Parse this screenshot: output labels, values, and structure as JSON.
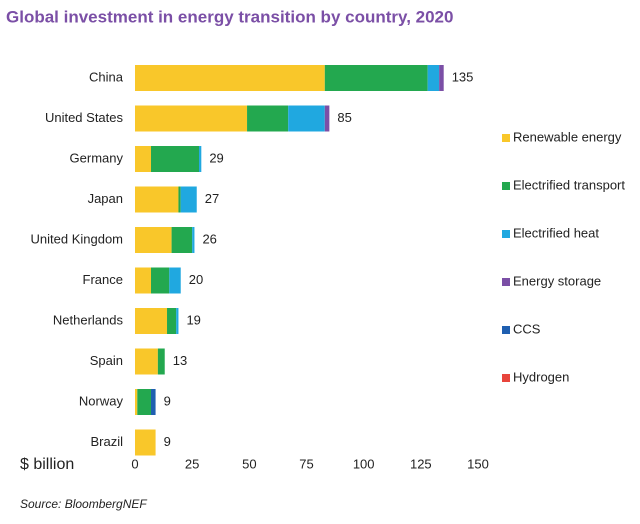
{
  "chart_data": {
    "type": "stacked-bar-horizontal",
    "title": "Global investment in energy transition by country, 2020",
    "x_label": "$ billion",
    "source": "Source: BloombergNEF",
    "categories": [
      "China",
      "United States",
      "Germany",
      "Japan",
      "United Kingdom",
      "France",
      "Netherlands",
      "Spain",
      "Norway",
      "Brazil"
    ],
    "series": [
      {
        "name": "Renewable energy",
        "color": "#f9c72a",
        "values": [
          83,
          49,
          7,
          19,
          16,
          7,
          14,
          10,
          1,
          9
        ]
      },
      {
        "name": "Electrified transport",
        "color": "#23a84f",
        "values": [
          45,
          18,
          21,
          1,
          9,
          8,
          4,
          3,
          6,
          0
        ]
      },
      {
        "name": "Electrified heat",
        "color": "#20a8e0",
        "values": [
          5,
          16,
          1,
          7,
          1,
          5,
          1,
          0,
          0,
          0
        ]
      },
      {
        "name": "Energy storage",
        "color": "#7b4fa6",
        "values": [
          2,
          2,
          0,
          0,
          0,
          0,
          0,
          0,
          0,
          0
        ]
      },
      {
        "name": "CCS",
        "color": "#1f5fb0",
        "values": [
          0,
          0,
          0,
          0,
          0,
          0,
          0,
          0,
          2,
          0
        ]
      },
      {
        "name": "Hydrogen",
        "color": "#e8453c",
        "values": [
          0,
          0,
          0,
          0,
          0,
          0,
          0,
          0,
          0,
          0
        ]
      }
    ],
    "totals": [
      135,
      85,
      29,
      27,
      26,
      20,
      19,
      13,
      9,
      9
    ],
    "xlim": [
      0,
      150
    ],
    "xticks": [
      0,
      25,
      50,
      75,
      100,
      125,
      150
    ],
    "grid": false,
    "legend": "right"
  }
}
